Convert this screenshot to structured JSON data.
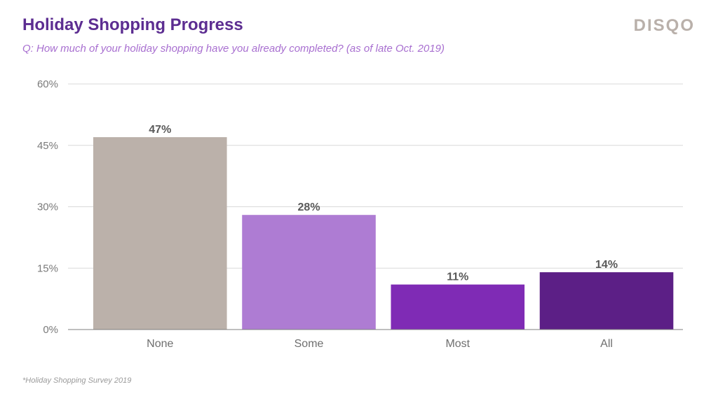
{
  "header": {
    "title": "Holiday Shopping Progress",
    "subtitle": "Q: How much of your holiday shopping have you already completed? (as of late Oct. 2019)",
    "logo_text": "DISQO"
  },
  "footnote": "*Holiday Shopping Survey 2019",
  "colors": {
    "title": "#5c2d91",
    "subtitle": "#a86fd0",
    "logo": "#b9b0aa",
    "gridline": "#d9d9d9",
    "axis": "#7f7f7f"
  },
  "chart_data": {
    "type": "bar",
    "categories": [
      "None",
      "Some",
      "Most",
      "All"
    ],
    "values": [
      47,
      28,
      11,
      14
    ],
    "data_labels": [
      "47%",
      "28%",
      "11%",
      "14%"
    ],
    "bar_colors": [
      "#bbb1aa",
      "#ae7cd3",
      "#7f2bb5",
      "#5c1f86"
    ],
    "yticks": [
      0,
      15,
      30,
      45,
      60
    ],
    "ytick_labels": [
      "0%",
      "15%",
      "30%",
      "45%",
      "60%"
    ],
    "ylim": [
      0,
      60
    ],
    "grid": true,
    "xlabel": "",
    "ylabel": ""
  }
}
